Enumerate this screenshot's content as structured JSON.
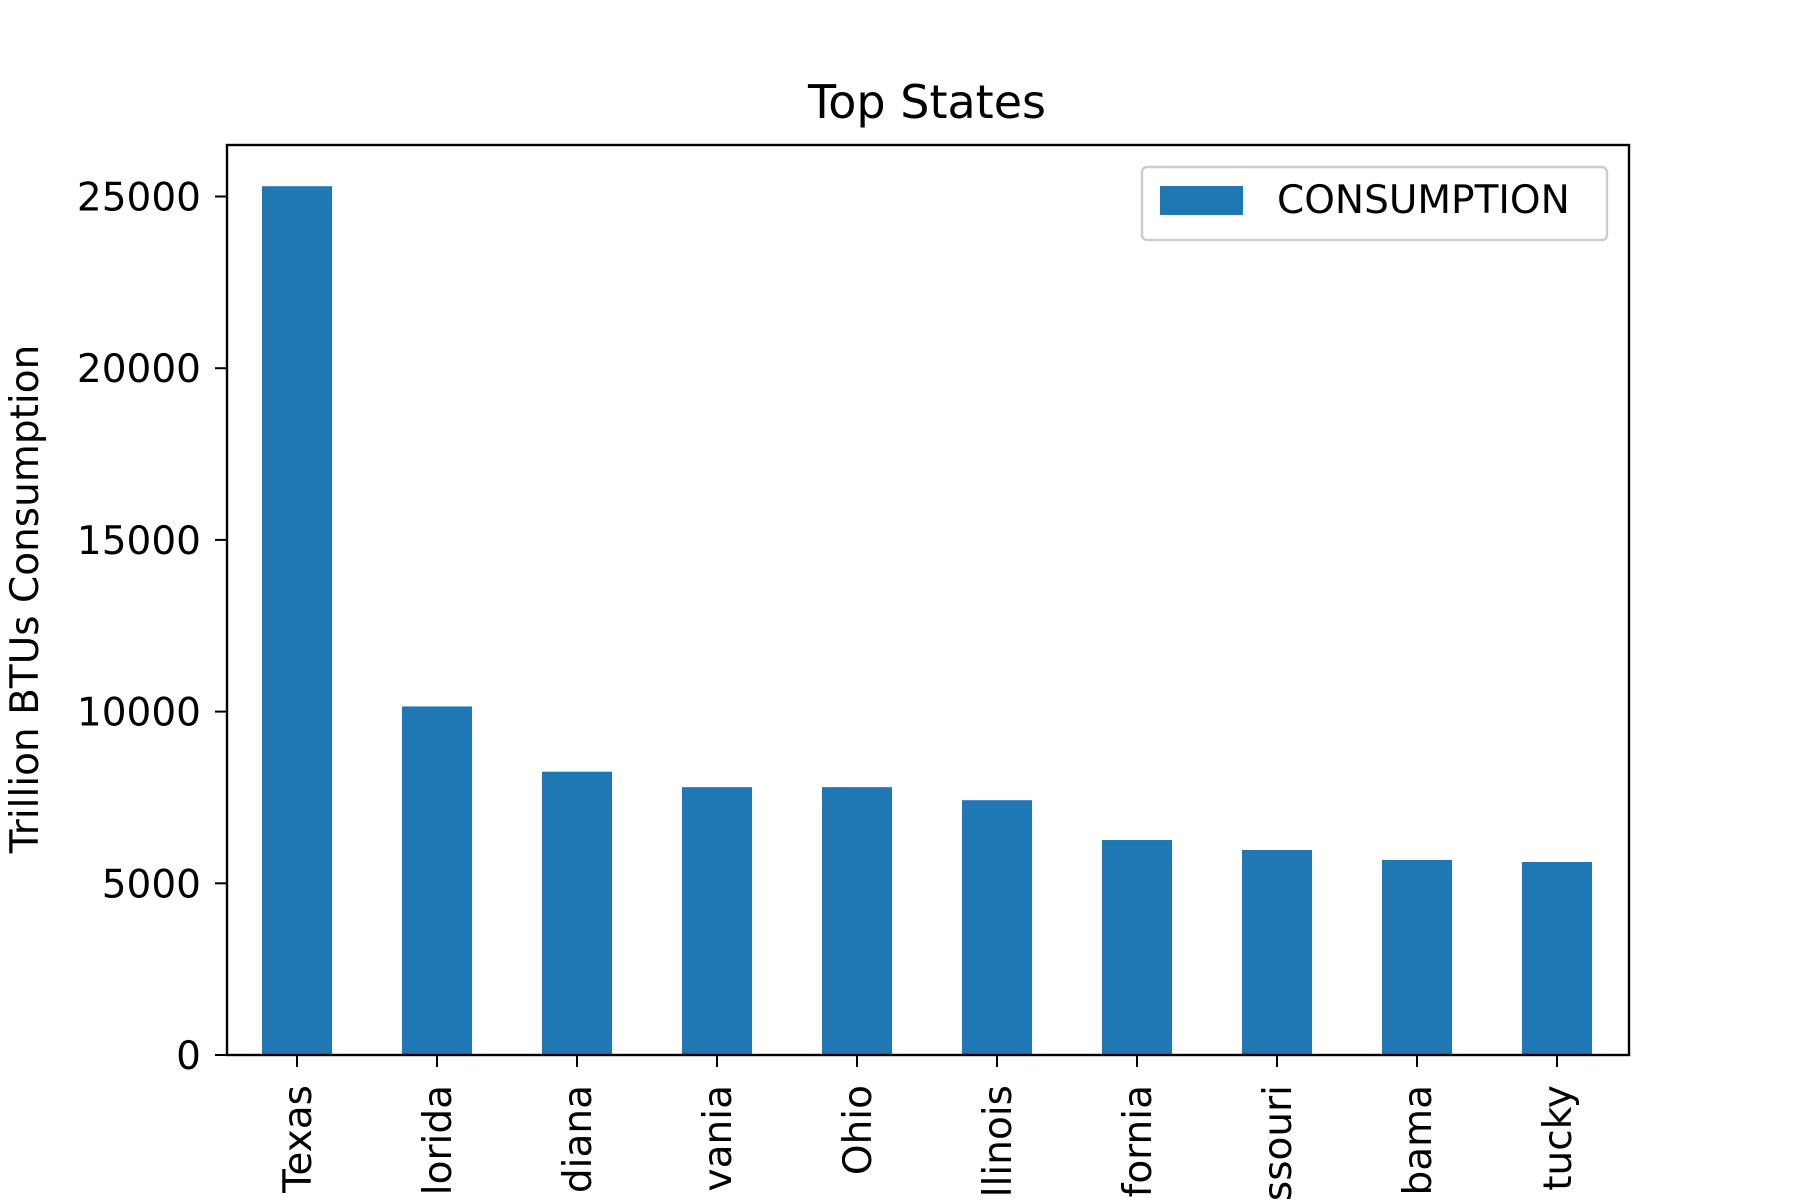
{
  "chart_data": {
    "type": "bar",
    "title": "Top States",
    "xlabel": "",
    "ylabel": "Trillion BTUs Consumption",
    "categories": [
      "Texas",
      "Florida",
      "Indiana",
      "Pennsylvania",
      "Ohio",
      "Illinois",
      "California",
      "Missouri",
      "Alabama",
      "Kentucky"
    ],
    "visible_tick_labels": [
      "Texas",
      "lorida",
      "diana",
      "vania",
      "Ohio",
      "llinois",
      "fornia",
      "ssouri",
      "bama",
      "tucky"
    ],
    "series": [
      {
        "name": "CONSUMPTION",
        "color": "#1f77b4",
        "values": [
          25300,
          10150,
          8250,
          7800,
          7800,
          7420,
          6260,
          5970,
          5680,
          5620
        ]
      }
    ],
    "ylim": [
      0,
      26500
    ],
    "yticks": [
      0,
      5000,
      10000,
      15000,
      20000,
      25000
    ],
    "ytick_labels": [
      "0",
      "5000",
      "10000",
      "15000",
      "20000",
      "25000"
    ],
    "grid": false,
    "legend": {
      "placement": "top-right",
      "entries": [
        "CONSUMPTION"
      ]
    }
  }
}
